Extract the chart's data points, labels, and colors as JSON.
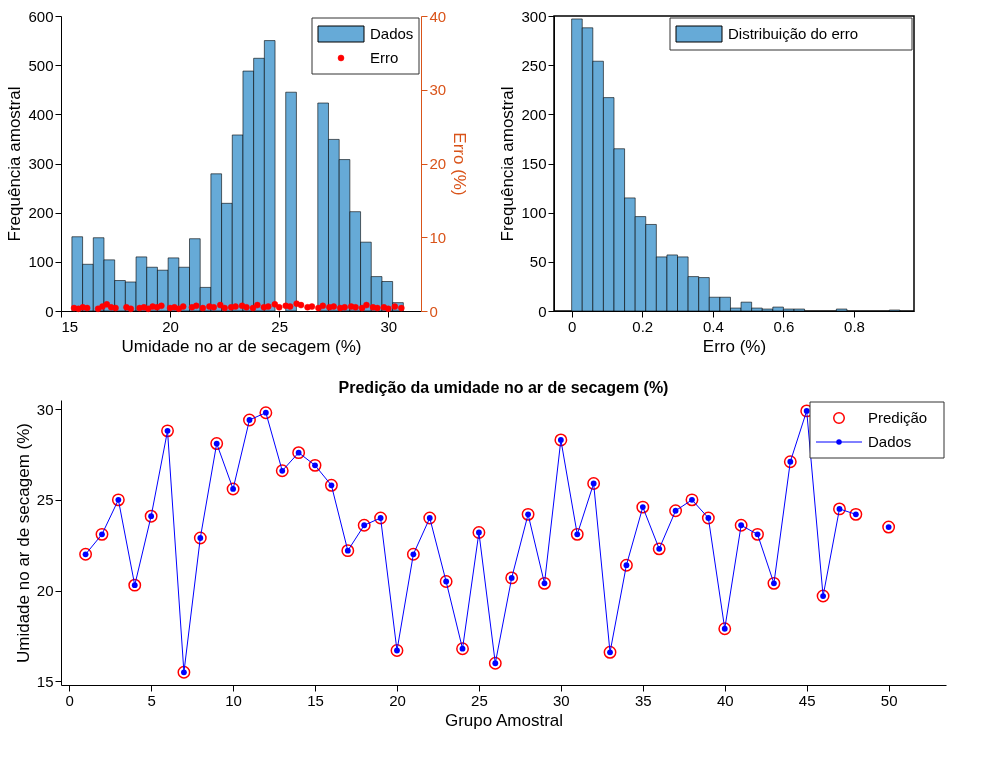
{
  "chart_data": [
    {
      "type": "histogram",
      "xlabel": "Umidade no ar de secagem (%)",
      "ylabel": "Frequência amostral",
      "y2label": "Erro (%)",
      "bins": [
        15.5,
        15.99,
        16.48,
        16.97,
        17.46,
        17.95,
        18.44,
        18.93,
        19.42,
        19.91,
        20.4,
        20.89,
        21.38,
        21.87,
        22.36,
        22.85,
        23.34,
        23.83,
        24.32,
        24.81,
        25.3,
        25.79,
        26.28,
        26.77,
        27.26,
        27.75,
        28.24,
        28.73,
        29.22,
        29.71,
        30.2,
        30.69
      ],
      "series": [
        {
          "name": "Dados",
          "type": "histogram",
          "color": "#66aad7",
          "values": [
            151,
            95,
            149,
            104,
            62,
            59,
            110,
            89,
            83,
            108,
            89,
            147,
            48,
            279,
            219,
            358,
            488,
            514,
            550,
            null,
            445,
            null,
            null,
            423,
            349,
            308,
            202,
            140,
            70,
            60,
            17
          ]
        },
        {
          "name": "Erro",
          "type": "scatter",
          "axis": "y2",
          "color": "#ff0000",
          "marker": "circle",
          "x": [
            15.6,
            15.8,
            16.0,
            16.2,
            16.7,
            16.9,
            17.1,
            17.3,
            17.5,
            18.0,
            18.2,
            18.6,
            18.8,
            19.0,
            19.2,
            19.4,
            19.6,
            20.0,
            20.2,
            20.4,
            20.6,
            21.0,
            21.2,
            21.5,
            21.8,
            22.0,
            22.3,
            22.5,
            22.8,
            23.0,
            23.3,
            23.5,
            23.8,
            24.0,
            24.3,
            24.5,
            24.8,
            25.0,
            25.3,
            25.5,
            25.8,
            26.0,
            26.3,
            26.5,
            26.8,
            27.0,
            27.3,
            27.5,
            27.8,
            28.0,
            28.3,
            28.5,
            28.8,
            29.0,
            29.3,
            29.5,
            29.8,
            30.0,
            30.3,
            30.6
          ],
          "values": [
            0.4,
            0.3,
            0.5,
            0.4,
            0.3,
            0.6,
            0.9,
            0.5,
            0.4,
            0.5,
            0.3,
            0.4,
            0.5,
            0.3,
            0.6,
            0.5,
            0.7,
            0.4,
            0.5,
            0.3,
            0.6,
            0.5,
            0.7,
            0.4,
            0.6,
            0.5,
            0.8,
            0.4,
            0.5,
            0.6,
            0.7,
            0.5,
            0.4,
            0.8,
            0.5,
            0.6,
            0.9,
            0.5,
            0.7,
            0.6,
            1.0,
            0.8,
            0.5,
            0.6,
            0.4,
            0.7,
            0.5,
            0.6,
            0.4,
            0.5,
            0.6,
            0.5,
            0.4,
            0.8,
            0.5,
            0.4,
            0.5,
            0.3,
            0.6,
            0.4
          ]
        }
      ],
      "xlim": [
        15,
        31.5
      ],
      "xticks": [
        15,
        20,
        25,
        30
      ],
      "ylim": [
        0,
        600
      ],
      "yticks": [
        0,
        100,
        200,
        300,
        400,
        500,
        600
      ],
      "y2lim": [
        0,
        40
      ],
      "y2ticks": [
        0,
        10,
        20,
        30,
        40
      ],
      "legend": "top right"
    },
    {
      "type": "histogram",
      "xlabel": "Erro (%)",
      "ylabel": "Frequência amostral",
      "bins": [
        0,
        0.03,
        0.06,
        0.09,
        0.12,
        0.15,
        0.18,
        0.21,
        0.24,
        0.27,
        0.3,
        0.33,
        0.36,
        0.39,
        0.42,
        0.45,
        0.48,
        0.51,
        0.54,
        0.57,
        0.6,
        0.63,
        0.66,
        0.69,
        0.72,
        0.75,
        0.78,
        0.81,
        0.84,
        0.87,
        0.9,
        0.93
      ],
      "series": [
        {
          "name": "Distribuição do erro",
          "type": "histogram",
          "color": "#66aad7",
          "values": [
            297,
            288,
            254,
            217,
            165,
            115,
            96,
            88,
            55,
            57,
            55,
            35,
            34,
            14,
            14,
            3,
            9,
            3,
            2,
            4,
            2,
            2,
            0,
            0,
            0,
            2,
            0,
            0,
            0,
            0,
            1
          ]
        }
      ],
      "xlim": [
        -0.05,
        0.97
      ],
      "xticks": [
        0,
        0.2,
        0.4,
        0.6,
        0.8
      ],
      "ylim": [
        0,
        300
      ],
      "yticks": [
        0,
        50,
        100,
        150,
        200,
        250,
        300
      ],
      "legend": "top right"
    },
    {
      "type": "line",
      "title": "Predição da umidade no ar de secagem (%)",
      "xlabel": "Grupo Amostral",
      "ylabel": "Umidade no ar de secagem (%)",
      "x": [
        1,
        2,
        3,
        4,
        5,
        6,
        7,
        8,
        9,
        10,
        11,
        12,
        13,
        14,
        15,
        16,
        17,
        18,
        19,
        20,
        21,
        22,
        23,
        24,
        25,
        26,
        27,
        28,
        29,
        30,
        31,
        32,
        33,
        34,
        35,
        36,
        37,
        38,
        39,
        40,
        41,
        42,
        43,
        44,
        45,
        46,
        47,
        48,
        49,
        50
      ],
      "series": [
        {
          "name": "Predição",
          "type": "scatter",
          "color": "#ff0000",
          "marker": "circle",
          "values": [
            22.0,
            23.1,
            25.0,
            20.3,
            24.1,
            28.8,
            15.5,
            22.9,
            28.1,
            25.6,
            29.4,
            29.8,
            26.6,
            27.6,
            26.9,
            25.8,
            22.2,
            23.6,
            24.0,
            16.7,
            22.0,
            24.0,
            20.5,
            16.8,
            23.2,
            16.0,
            20.7,
            24.2,
            20.4,
            28.3,
            23.1,
            25.9,
            16.6,
            21.4,
            24.6,
            22.3,
            24.4,
            25.0,
            24.0,
            17.9,
            23.6,
            23.1,
            20.4,
            27.1,
            29.9,
            19.7,
            24.5,
            24.2,
            null,
            23.5
          ]
        },
        {
          "name": "Dados",
          "type": "line",
          "color": "#0000ff",
          "marker": "circle",
          "line_style": "solid",
          "values": [
            22.0,
            23.1,
            25.0,
            20.3,
            24.1,
            28.8,
            15.5,
            22.9,
            28.1,
            25.6,
            29.4,
            29.8,
            26.6,
            27.6,
            26.9,
            25.8,
            22.2,
            23.6,
            24.0,
            16.7,
            22.0,
            24.0,
            20.5,
            16.8,
            23.2,
            16.0,
            20.7,
            24.2,
            20.4,
            28.3,
            23.1,
            25.9,
            16.6,
            21.4,
            24.6,
            22.3,
            24.4,
            25.0,
            24.0,
            17.9,
            23.6,
            23.1,
            20.4,
            27.1,
            29.9,
            19.7,
            24.5,
            24.2,
            null,
            23.5
          ]
        }
      ],
      "xlim": [
        -0.5,
        53.5
      ],
      "xticks": [
        0,
        5,
        10,
        15,
        20,
        25,
        30,
        35,
        40,
        45,
        50
      ],
      "ylim": [
        14.8,
        30.5
      ],
      "yticks": [
        15,
        20,
        25,
        30
      ],
      "legend": "top right"
    }
  ]
}
